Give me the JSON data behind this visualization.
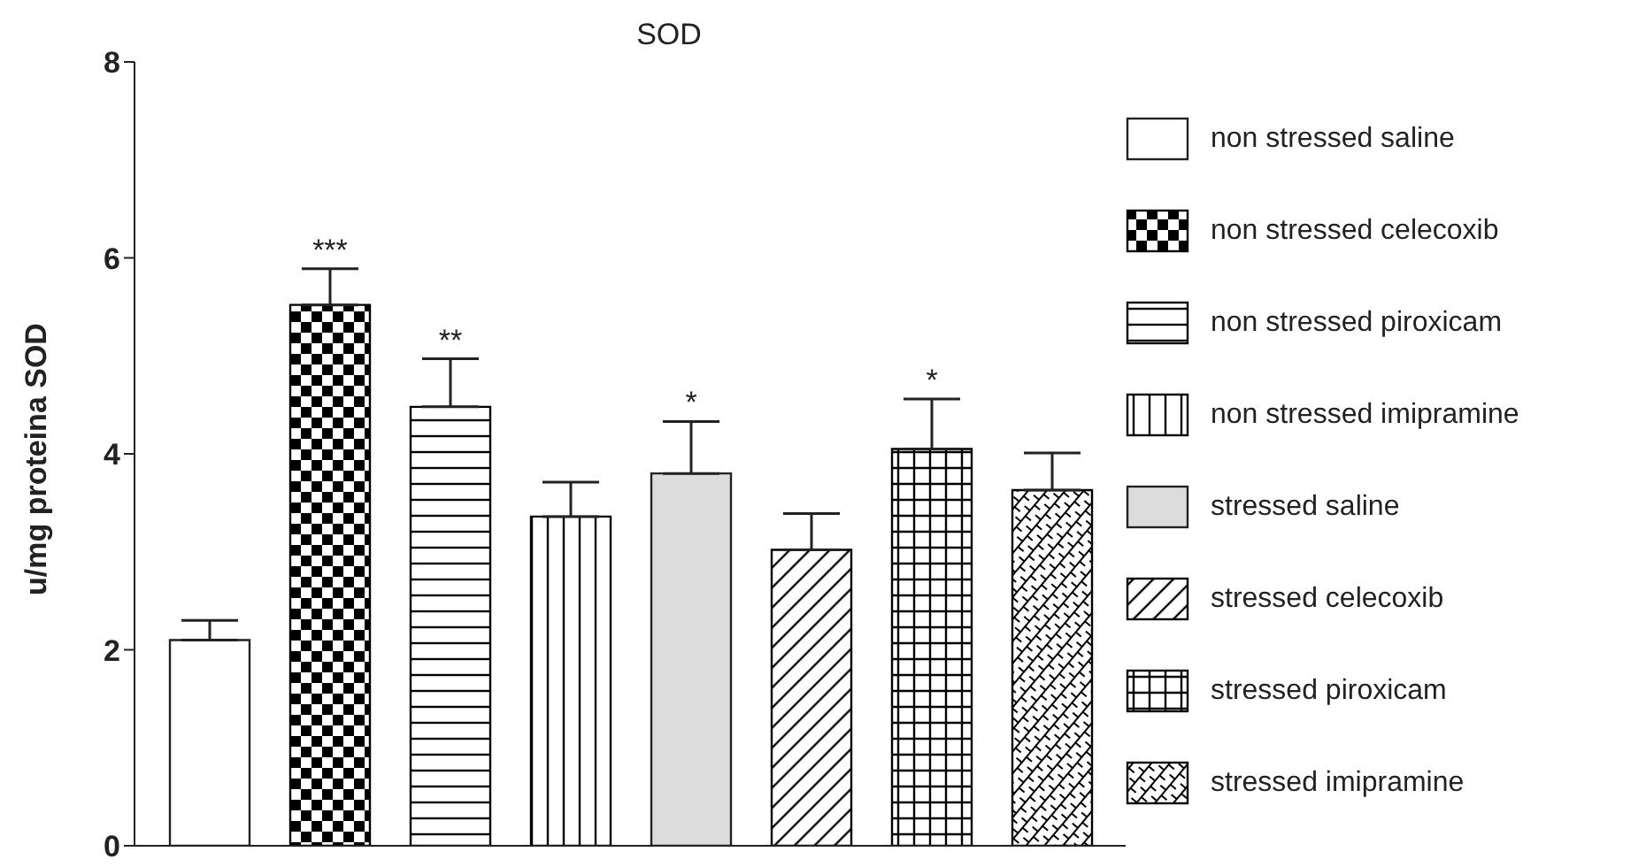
{
  "chart_data": {
    "type": "bar",
    "title": "SOD",
    "ylabel": "u/mg proteina SOD",
    "categories": [
      null
    ],
    "series": [
      {
        "name": "non stressed saline",
        "color": "#ffffff",
        "values": [
          2.1
        ],
        "errors": [
          0.2
        ]
      },
      {
        "name": "non stressed celecoxib",
        "color": "#000000",
        "values": [
          5.52
        ],
        "errors": [
          0.37
        ],
        "value_labels": [
          "***"
        ]
      },
      {
        "name": "non stressed piroxicam",
        "color": "#000000",
        "values": [
          4.48
        ],
        "errors": [
          0.49
        ],
        "value_labels": [
          "**"
        ]
      },
      {
        "name": "non stressed imipramine",
        "color": "#000000",
        "values": [
          3.36
        ],
        "errors": [
          0.35
        ]
      },
      {
        "name": "stressed saline",
        "color": "#dcdcdc",
        "values": [
          3.8
        ],
        "errors": [
          0.53
        ],
        "value_labels": [
          "*"
        ]
      },
      {
        "name": "stressed celecoxib",
        "color": "#000000",
        "values": [
          3.02
        ],
        "errors": [
          0.37
        ]
      },
      {
        "name": "stressed piroxicam",
        "color": "#000000",
        "values": [
          4.05
        ],
        "errors": [
          0.51
        ],
        "value_labels": [
          "*"
        ]
      },
      {
        "name": "stressed imipramine",
        "color": "#000000",
        "values": [
          3.63
        ],
        "errors": [
          0.38
        ]
      }
    ],
    "ylim": [
      0,
      8
    ],
    "yticks": [
      0,
      2,
      4,
      6,
      8
    ],
    "grid": false,
    "legend": "right",
    "tick_labels": "y"
  }
}
